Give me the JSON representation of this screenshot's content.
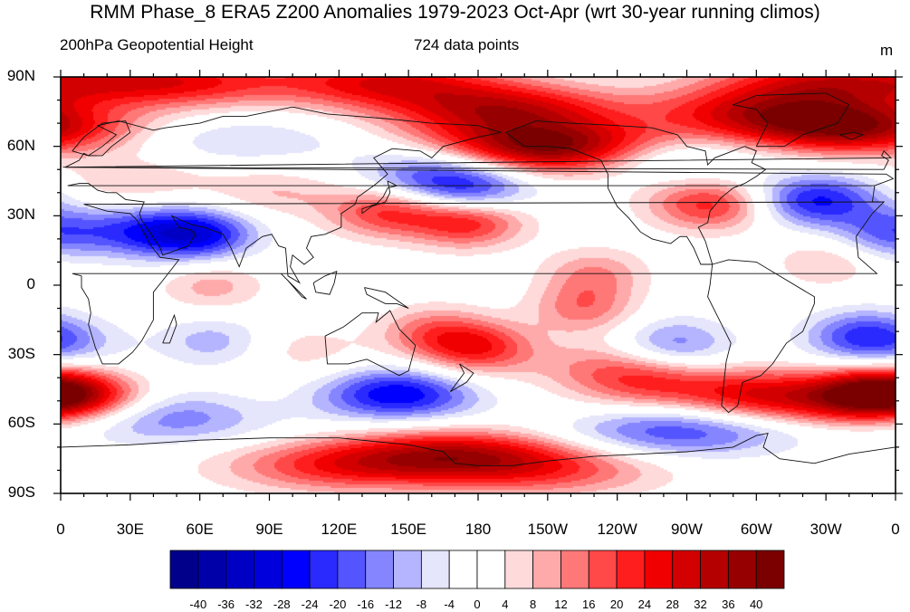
{
  "titles": {
    "main": "RMM Phase_8 ERA5 Z200 Anomalies 1979-2023 Oct-Apr (wrt 30-year running climos)",
    "left": "200hPa Geopotential Height",
    "center": "724 data points",
    "units": "m"
  },
  "axes": {
    "y_ticks": [
      "90N",
      "60N",
      "30N",
      "0",
      "30S",
      "60S",
      "90S"
    ],
    "x_ticks": [
      "0",
      "30E",
      "60E",
      "90E",
      "120E",
      "150E",
      "180",
      "150W",
      "120W",
      "90W",
      "60W",
      "30W",
      "0"
    ],
    "lat_range": [
      -90,
      90
    ],
    "lon_range": [
      0,
      360
    ]
  },
  "colorbar": {
    "labels": [
      "-40",
      "-36",
      "-32",
      "-28",
      "-24",
      "-20",
      "-16",
      "-12",
      "-8",
      "-4",
      "0",
      "4",
      "8",
      "12",
      "16",
      "20",
      "24",
      "28",
      "32",
      "36",
      "40"
    ],
    "colors": [
      "#00008b",
      "#0000a8",
      "#0000c4",
      "#0000dd",
      "#0000ff",
      "#2a2aff",
      "#5555ff",
      "#8585ff",
      "#b5b5ff",
      "#e5e5fb",
      "#ffffff",
      "#ffffff",
      "#ffdada",
      "#ffaaaa",
      "#ff7878",
      "#ff4848",
      "#ff1e1e",
      "#f00000",
      "#d20000",
      "#b40000",
      "#960000",
      "#7a0000"
    ]
  },
  "chart_data": {
    "type": "heatmap",
    "variable": "200hPa Geopotential Height",
    "units": "m",
    "levels": [
      -40,
      -36,
      -32,
      -28,
      -24,
      -20,
      -16,
      -12,
      -8,
      -4,
      0,
      4,
      8,
      12,
      16,
      20,
      24,
      28,
      32,
      36,
      40
    ],
    "anomaly_centers": [
      {
        "lon": 45,
        "lat": 88,
        "value": 26
      },
      {
        "lon": 140,
        "lat": 88,
        "value": 26
      },
      {
        "lon": 330,
        "lat": 88,
        "value": 26
      },
      {
        "lon": 210,
        "lat": 60,
        "value": 42
      },
      {
        "lon": 190,
        "lat": 76,
        "value": 30
      },
      {
        "lon": 340,
        "lat": 68,
        "value": 36
      },
      {
        "lon": 300,
        "lat": 75,
        "value": 22
      },
      {
        "lon": 75,
        "lat": 63,
        "value": -8
      },
      {
        "lon": 160,
        "lat": 48,
        "value": -14
      },
      {
        "lon": 175,
        "lat": 40,
        "value": -20
      },
      {
        "lon": 262,
        "lat": 56,
        "value": -8
      },
      {
        "lon": 60,
        "lat": 22,
        "value": -26
      },
      {
        "lon": 35,
        "lat": 23,
        "value": -18
      },
      {
        "lon": 2,
        "lat": 23,
        "value": -8
      },
      {
        "lon": 175,
        "lat": 28,
        "value": 25
      },
      {
        "lon": 140,
        "lat": 32,
        "value": 20
      },
      {
        "lon": 280,
        "lat": 35,
        "value": 22
      },
      {
        "lon": 325,
        "lat": 37,
        "value": -25
      },
      {
        "lon": 355,
        "lat": 23,
        "value": -10
      },
      {
        "lon": 90,
        "lat": 40,
        "value": 8
      },
      {
        "lon": 30,
        "lat": 45,
        "value": 8
      },
      {
        "lon": 65,
        "lat": 0,
        "value": 10
      },
      {
        "lon": 330,
        "lat": 10,
        "value": 8
      },
      {
        "lon": 230,
        "lat": 5,
        "value": 12
      },
      {
        "lon": 225,
        "lat": -10,
        "value": 14
      },
      {
        "lon": 230,
        "lat": -35,
        "value": 10
      },
      {
        "lon": 180,
        "lat": -27,
        "value": 22
      },
      {
        "lon": 160,
        "lat": -20,
        "value": 14
      },
      {
        "lon": 265,
        "lat": -25,
        "value": -14
      },
      {
        "lon": 345,
        "lat": -22,
        "value": -20
      },
      {
        "lon": 5,
        "lat": -25,
        "value": -8
      },
      {
        "lon": 65,
        "lat": -24,
        "value": -10
      },
      {
        "lon": 145,
        "lat": -47,
        "value": -28
      },
      {
        "lon": 45,
        "lat": -57,
        "value": -16
      },
      {
        "lon": 0,
        "lat": -47,
        "value": 26
      },
      {
        "lon": 350,
        "lat": -47,
        "value": 30
      },
      {
        "lon": 300,
        "lat": -47,
        "value": 25
      },
      {
        "lon": 255,
        "lat": -42,
        "value": 18
      },
      {
        "lon": 265,
        "lat": -63,
        "value": -20
      },
      {
        "lon": 170,
        "lat": -73,
        "value": 28
      },
      {
        "lon": 120,
        "lat": -78,
        "value": 20
      },
      {
        "lon": 210,
        "lat": -80,
        "value": 16
      },
      {
        "lon": 105,
        "lat": -28,
        "value": 6
      }
    ]
  }
}
